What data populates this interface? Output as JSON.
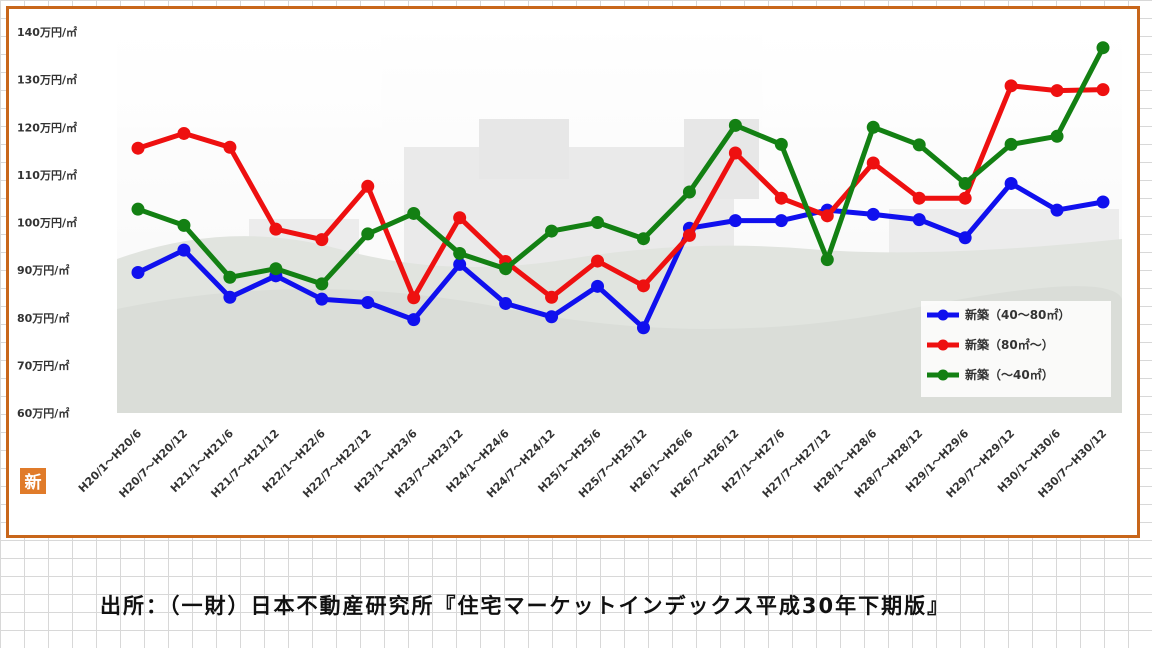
{
  "chart_data": {
    "type": "line",
    "title": "",
    "xlabel": "",
    "ylabel": "",
    "ylim": [
      60,
      140
    ],
    "yticks": [
      "60万円/㎡",
      "70万円/㎡",
      "80万円/㎡",
      "90万円/㎡",
      "100万円/㎡",
      "110万円/㎡",
      "120万円/㎡",
      "130万円/㎡",
      "140万円/㎡"
    ],
    "categories": [
      "H20/1～H20/6",
      "H20/7～H20/12",
      "H21/1～H21/6",
      "H21/7～H21/12",
      "H22/1～H22/6",
      "H22/7～H22/12",
      "H23/1～H23/6",
      "H23/7～H23/12",
      "H24/1～H24/6",
      "H24/7～H24/12",
      "H25/1～H25/6",
      "H25/7～H25/12",
      "H26/1～H26/6",
      "H26/7～H26/12",
      "H27/1～H27/6",
      "H27/7～H27/12",
      "H28/1～H28/6",
      "H28/7～H28/12",
      "H29/1～H29/6",
      "H29/7～H29/12",
      "H30/1～H30/6",
      "H30/7～H30/12"
    ],
    "series": [
      {
        "name": "新築（40～80㎡）",
        "color": "#1010ee",
        "values": [
          89.5,
          94.2,
          84.3,
          88.8,
          83.9,
          83.2,
          79.6,
          91.2,
          83.0,
          80.2,
          86.6,
          77.9,
          98.8,
          100.4,
          100.4,
          102.6,
          101.7,
          100.6,
          96.8,
          108.2,
          102.6,
          104.3
        ]
      },
      {
        "name": "新築（80㎡～）",
        "color": "#ee1010",
        "values": [
          115.6,
          118.7,
          115.8,
          98.6,
          96.4,
          107.6,
          84.2,
          101.0,
          91.8,
          84.3,
          91.9,
          86.7,
          97.3,
          114.6,
          105.1,
          101.4,
          112.5,
          105.1,
          105.1,
          128.7,
          127.7,
          127.9
        ]
      },
      {
        "name": "新築（～40㎡）",
        "color": "#138013",
        "values": [
          102.8,
          99.4,
          88.5,
          90.3,
          87.1,
          97.6,
          101.9,
          93.5,
          90.3,
          98.2,
          100.0,
          96.6,
          106.4,
          120.4,
          116.4,
          92.2,
          120.0,
          116.3,
          108.2,
          116.4,
          118.1,
          136.7
        ]
      }
    ],
    "grid": false,
    "legend": "bottom-right"
  },
  "logo_text": "新",
  "source_note": "出所：（一財）日本不動産研究所『住宅マーケットインデックス平成30年下期版』"
}
